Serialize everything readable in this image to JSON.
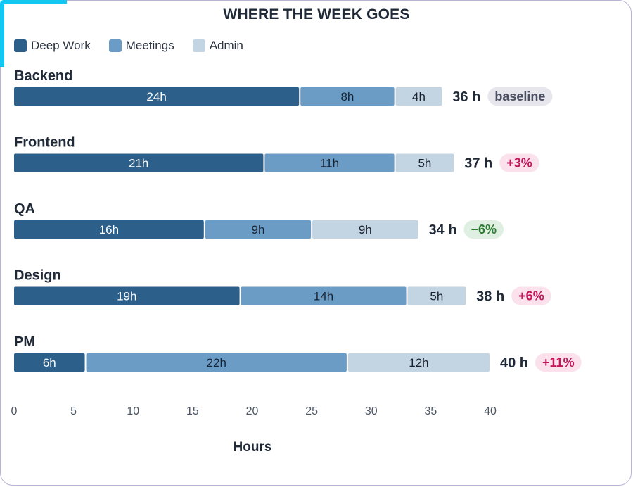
{
  "chart_data": {
    "type": "bar",
    "orientation": "horizontal",
    "stacked": true,
    "title": "WHERE THE WEEK GOES",
    "xlabel": "Hours",
    "xlim": [
      0,
      40
    ],
    "xticks": [
      0,
      5,
      10,
      15,
      20,
      25,
      30,
      35,
      40
    ],
    "categories": [
      "Backend",
      "Frontend",
      "QA",
      "Design",
      "PM"
    ],
    "series": [
      {
        "name": "Deep Work",
        "color": "#2d5f8b",
        "values": [
          24,
          21,
          16,
          19,
          6
        ]
      },
      {
        "name": "Meetings",
        "color": "#6b9cc6",
        "values": [
          8,
          11,
          9,
          14,
          22
        ]
      },
      {
        "name": "Admin",
        "color": "#c3d4e3",
        "values": [
          4,
          5,
          9,
          5,
          12
        ]
      }
    ],
    "totals": [
      "36 h",
      "37 h",
      "34 h",
      "38 h",
      "40 h"
    ],
    "badges": [
      {
        "text": "baseline",
        "kind": "neutral"
      },
      {
        "text": "+3%",
        "kind": "up"
      },
      {
        "text": "−6%",
        "kind": "down"
      },
      {
        "text": "+6%",
        "kind": "up"
      },
      {
        "text": "+11%",
        "kind": "up"
      }
    ],
    "grid": false,
    "legend_position": "top-left"
  },
  "colors": {
    "accent": "#12c8f0",
    "badge_neutral_bg": "#e6e6ec",
    "badge_neutral_fg": "#4b4f63",
    "badge_up_bg": "#fbe1ec",
    "badge_up_fg": "#c2185b",
    "badge_down_bg": "#dff0e3",
    "badge_down_fg": "#2e7d32"
  }
}
